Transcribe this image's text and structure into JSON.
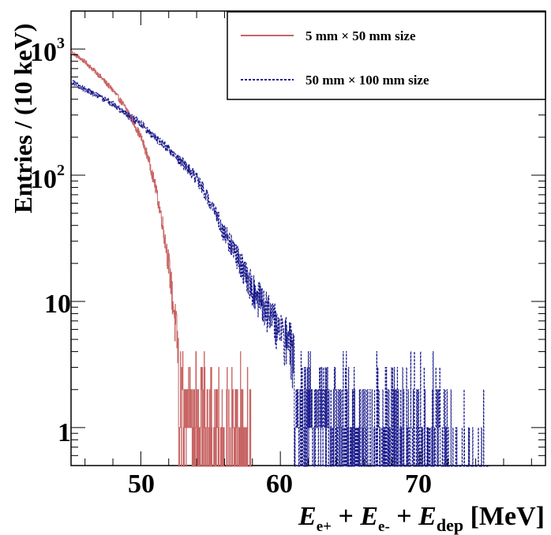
{
  "chart_data": {
    "type": "histogram",
    "title": "",
    "ylabel": "Entries / (10 keV)",
    "xlabel": {
      "parts": [
        "E",
        "e+",
        " + ",
        "E",
        "e-",
        " + ",
        "E",
        "dep",
        " [MeV]"
      ]
    },
    "x_range": [
      45,
      79
    ],
    "y_scale": "log",
    "y_range": [
      0.5,
      2000
    ],
    "x_ticks": [
      50,
      60,
      70
    ],
    "x_tick_labels": [
      "50",
      "60",
      "70"
    ],
    "y_ticks": [
      1,
      10,
      100,
      1000
    ],
    "y_tick_labels": {
      "one": "1",
      "ten": "10",
      "hundred_base": "10",
      "hundred_exp": "2",
      "thousand_base": "10",
      "thousand_exp": "3"
    },
    "bin_width_mev": 0.01,
    "series": [
      {
        "name": "5 mm  × 50 mm size",
        "color": "#c86464",
        "style": "solid",
        "envelope": [
          {
            "x": 45.0,
            "y": 950
          },
          {
            "x": 46.0,
            "y": 790
          },
          {
            "x": 47.0,
            "y": 620
          },
          {
            "x": 48.0,
            "y": 470
          },
          {
            "x": 49.0,
            "y": 330
          },
          {
            "x": 50.0,
            "y": 200
          },
          {
            "x": 50.5,
            "y": 140
          },
          {
            "x": 51.0,
            "y": 85
          },
          {
            "x": 51.5,
            "y": 45
          },
          {
            "x": 52.0,
            "y": 20
          },
          {
            "x": 52.3,
            "y": 10
          },
          {
            "x": 52.6,
            "y": 5
          },
          {
            "x": 52.8,
            "y": 3
          },
          {
            "x": 53.5,
            "y": 2
          },
          {
            "x": 54.5,
            "y": 1.5
          },
          {
            "x": 56.0,
            "y": 1
          },
          {
            "x": 58.0,
            "y": 1
          }
        ],
        "sparse_until": 58.0
      },
      {
        "name": "50 mm  × 100 mm size",
        "color": "#1a1a8c",
        "style": "dashed",
        "envelope": [
          {
            "x": 45.0,
            "y": 550
          },
          {
            "x": 46.0,
            "y": 480
          },
          {
            "x": 47.0,
            "y": 420
          },
          {
            "x": 48.0,
            "y": 370
          },
          {
            "x": 49.0,
            "y": 300
          },
          {
            "x": 50.0,
            "y": 260
          },
          {
            "x": 51.0,
            "y": 200
          },
          {
            "x": 52.0,
            "y": 160
          },
          {
            "x": 53.0,
            "y": 125
          },
          {
            "x": 54.0,
            "y": 95
          },
          {
            "x": 55.0,
            "y": 60
          },
          {
            "x": 56.0,
            "y": 35
          },
          {
            "x": 57.0,
            "y": 22
          },
          {
            "x": 58.0,
            "y": 13
          },
          {
            "x": 59.0,
            "y": 9
          },
          {
            "x": 60.0,
            "y": 6
          },
          {
            "x": 61.0,
            "y": 4
          },
          {
            "x": 62.0,
            "y": 3
          },
          {
            "x": 63.0,
            "y": 2.2
          },
          {
            "x": 64.0,
            "y": 1.6
          },
          {
            "x": 66.0,
            "y": 1
          },
          {
            "x": 72.0,
            "y": 1
          }
        ],
        "sparse_until": 75.0
      }
    ],
    "legend_position": "top-right"
  },
  "colors": {
    "frame": "#000000",
    "background": "#ffffff"
  }
}
